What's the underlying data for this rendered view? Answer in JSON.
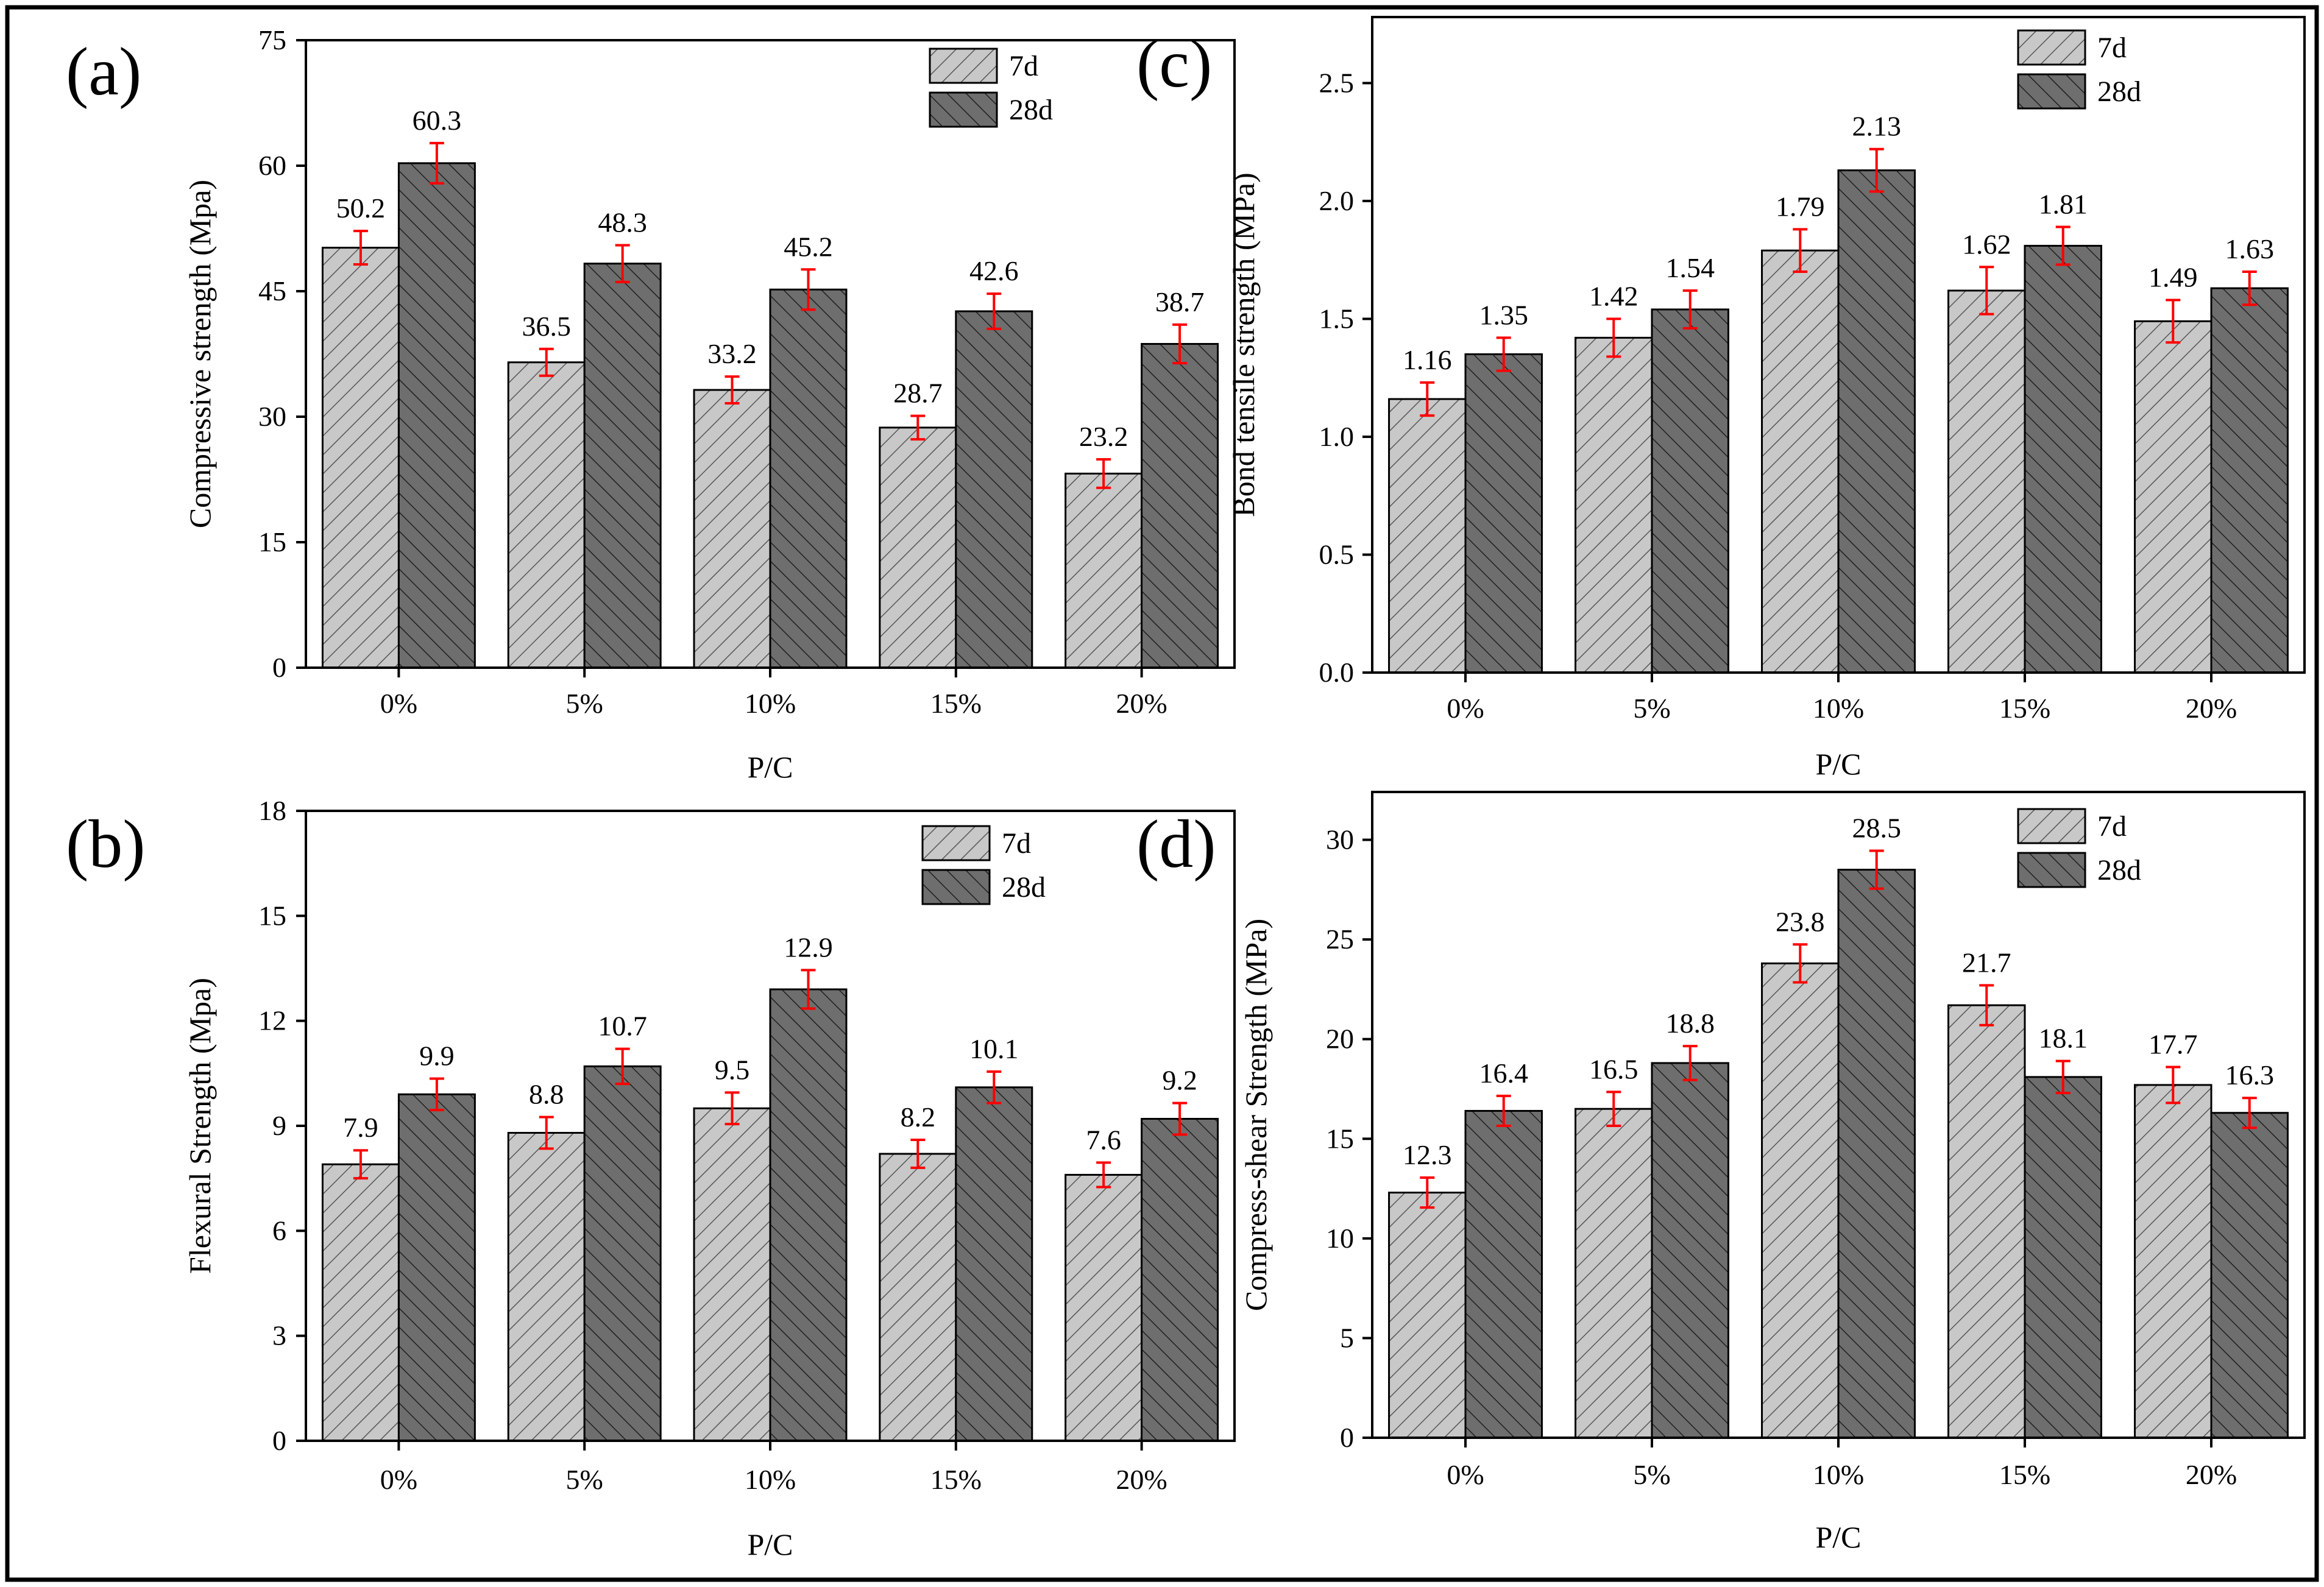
{
  "chart_data": [
    {
      "type": "bar",
      "panel_label": "(a)",
      "categories": [
        "0%",
        "5%",
        "10%",
        "15%",
        "20%"
      ],
      "series": [
        {
          "name": "7d",
          "values": [
            50.2,
            36.5,
            33.2,
            28.7,
            23.2
          ],
          "errors": [
            2.0,
            1.6,
            1.6,
            1.4,
            1.7
          ],
          "value_labels": [
            "50.2",
            "36.5",
            "33.2",
            "28.7",
            "23.2"
          ]
        },
        {
          "name": "28d",
          "values": [
            60.3,
            48.3,
            45.2,
            42.6,
            38.7
          ],
          "errors": [
            2.4,
            2.2,
            2.4,
            2.1,
            2.3
          ],
          "value_labels": [
            "60.3",
            "48.3",
            "45.2",
            "42.6",
            "38.7"
          ]
        }
      ],
      "title": "",
      "xlabel": "P/C",
      "ylabel": "Compressive strength (Mpa)",
      "ylim": [
        0,
        75
      ],
      "yticks": [
        0,
        15,
        30,
        45,
        60,
        75
      ],
      "ytick_labels": [
        "0",
        "15",
        "30",
        "45",
        "60",
        "75"
      ],
      "legend_position": "top-right",
      "grid": false
    },
    {
      "type": "bar",
      "panel_label": "(b)",
      "categories": [
        "0%",
        "5%",
        "10%",
        "15%",
        "20%"
      ],
      "series": [
        {
          "name": "7d",
          "values": [
            7.9,
            8.8,
            9.5,
            8.2,
            7.6
          ],
          "errors": [
            0.4,
            0.45,
            0.45,
            0.4,
            0.35
          ],
          "value_labels": [
            "7.9",
            "8.8",
            "9.5",
            "8.2",
            "7.6"
          ]
        },
        {
          "name": "28d",
          "values": [
            9.9,
            10.7,
            12.9,
            10.1,
            9.2
          ],
          "errors": [
            0.45,
            0.5,
            0.55,
            0.45,
            0.45
          ],
          "value_labels": [
            "9.9",
            "10.7",
            "12.9",
            "10.1",
            "9.2"
          ]
        }
      ],
      "title": "",
      "xlabel": "P/C",
      "ylabel": "Flexural Strength (Mpa)",
      "ylim": [
        0,
        18
      ],
      "yticks": [
        0,
        3,
        6,
        9,
        12,
        15,
        18
      ],
      "ytick_labels": [
        "0",
        "3",
        "6",
        "9",
        "12",
        "15",
        "18"
      ],
      "legend_position": "top-right",
      "grid": false
    },
    {
      "type": "bar",
      "panel_label": "(c)",
      "categories": [
        "0%",
        "5%",
        "10%",
        "15%",
        "20%"
      ],
      "series": [
        {
          "name": "7d",
          "values": [
            1.16,
            1.42,
            1.79,
            1.62,
            1.49
          ],
          "errors": [
            0.07,
            0.08,
            0.09,
            0.1,
            0.09
          ],
          "value_labels": [
            "1.16",
            "1.42",
            "1.79",
            "1.62",
            "1.49"
          ]
        },
        {
          "name": "28d",
          "values": [
            1.35,
            1.54,
            2.13,
            1.81,
            1.63
          ],
          "errors": [
            0.07,
            0.08,
            0.09,
            0.08,
            0.07
          ],
          "value_labels": [
            "1.35",
            "1.54",
            "2.13",
            "1.81",
            "1.63"
          ]
        }
      ],
      "title": "",
      "xlabel": "P/C",
      "ylabel": "Bond tensile strength (MPa)",
      "ylim": [
        0,
        2.78
      ],
      "yticks": [
        0,
        0.5,
        1.0,
        1.5,
        2.0,
        2.5
      ],
      "ytick_labels": [
        "0.0",
        "0.5",
        "1.0",
        "1.5",
        "2.0",
        "2.5"
      ],
      "legend_position": "top-right",
      "grid": false
    },
    {
      "type": "bar",
      "panel_label": "(d)",
      "categories": [
        "0%",
        "5%",
        "10%",
        "15%",
        "20%"
      ],
      "series": [
        {
          "name": "7d",
          "values": [
            12.3,
            16.5,
            23.8,
            21.7,
            17.7
          ],
          "errors": [
            0.75,
            0.85,
            0.95,
            1.0,
            0.9
          ],
          "value_labels": [
            "12.3",
            "16.5",
            "23.8",
            "21.7",
            "17.7"
          ]
        },
        {
          "name": "28d",
          "values": [
            16.4,
            18.8,
            28.5,
            18.1,
            16.3
          ],
          "errors": [
            0.75,
            0.85,
            0.95,
            0.8,
            0.75
          ],
          "value_labels": [
            "16.4",
            "18.8",
            "28.5",
            "18.1",
            "16.3"
          ]
        }
      ],
      "title": "",
      "xlabel": "P/C",
      "ylabel": "Compress-shear Strength (MPa)",
      "ylim": [
        0,
        32.4
      ],
      "yticks": [
        0,
        5,
        10,
        15,
        20,
        25,
        30
      ],
      "ytick_labels": [
        "0",
        "5",
        "10",
        "15",
        "20",
        "25",
        "30"
      ],
      "legend_position": "top-right",
      "grid": false
    }
  ],
  "colors": {
    "series_7d_fill": "#c8c8c8",
    "series_28d_fill": "#6e6e6e",
    "hatch_7d": "#555555",
    "hatch_28d": "#1e1e1e",
    "error_bar": "#ff0000",
    "axis": "#000000"
  }
}
